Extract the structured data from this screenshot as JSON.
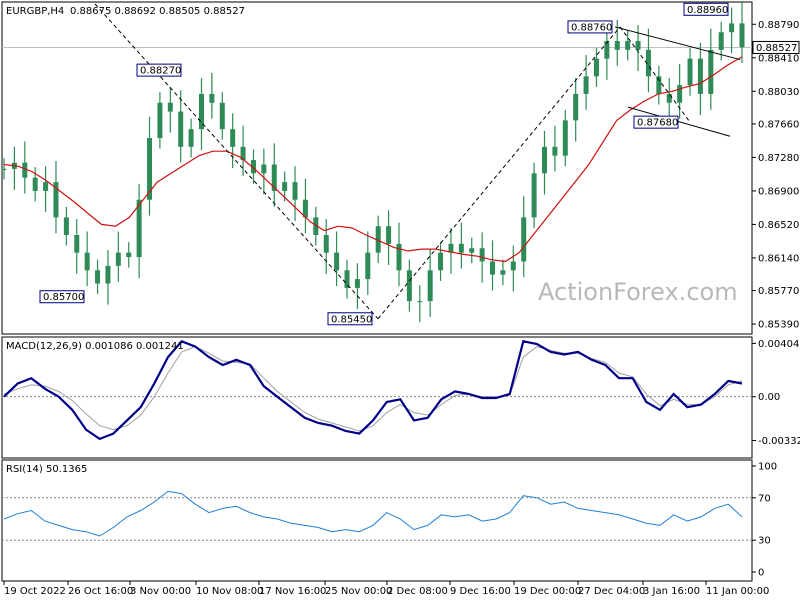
{
  "header": {
    "symbol": "EURGBP,H4",
    "ohlc": "0.88675 0.88692 0.88505 0.88527"
  },
  "watermark": "ActionForex.com",
  "colors": {
    "candle": "#2e8b57",
    "ma": "#d01010",
    "trendline": "#000000",
    "label_border": "#000080",
    "label_fill": "#ffffff",
    "macd_main": "#00008b",
    "macd_signal": "#a0a0a0",
    "rsi": "#1e7fd8",
    "grid": "#888888",
    "watermark": "#b8b8b8"
  },
  "chart_data": [
    {
      "type": "candlestick",
      "title": "EURGBP,H4",
      "ylim": [
        0.853,
        0.8902
      ],
      "yticks": [
        "0.88790",
        "0.88410",
        "0.88030",
        "0.87660",
        "0.87280",
        "0.86900",
        "0.86520",
        "0.86140",
        "0.85770",
        "0.85390"
      ],
      "current_price_label": "0.88527",
      "current_price": 0.88527,
      "xticks": [
        "19 Oct 2022",
        "26 Oct 16:00",
        "3 Nov 00:00",
        "10 Nov 08:00",
        "17 Nov 16:00",
        "25 Nov 00:00",
        "2 Dec 08:00",
        "9 Dec 16:00",
        "19 Dec 00:00",
        "27 Dec 04:00",
        "3 Jan 16:00",
        "11 Jan 00:00"
      ],
      "series": [
        {
          "kind": "close",
          "values": [
            0.8715,
            0.8722,
            0.8705,
            0.869,
            0.87,
            0.866,
            0.864,
            0.862,
            0.86,
            0.8585,
            0.8605,
            0.862,
            0.8615,
            0.868,
            0.875,
            0.879,
            0.878,
            0.874,
            0.876,
            0.88,
            0.879,
            0.876,
            0.874,
            0.8725,
            0.871,
            0.872,
            0.869,
            0.87,
            0.868,
            0.866,
            0.864,
            0.862,
            0.86,
            0.858,
            0.859,
            0.862,
            0.865,
            0.863,
            0.86,
            0.8565,
            0.8565,
            0.86,
            0.862,
            0.863,
            0.862,
            0.8625,
            0.861,
            0.8595,
            0.86,
            0.861,
            0.866,
            0.871,
            0.874,
            0.873,
            0.877,
            0.88,
            0.882,
            0.884,
            0.886,
            0.885,
            0.886,
            0.885,
            0.882,
            0.88,
            0.879,
            0.881,
            0.884,
            0.88,
            0.885,
            0.887,
            0.888,
            0.8853
          ]
        },
        {
          "kind": "moving_average",
          "values": [
            0.872,
            0.8718,
            0.8712,
            0.8702,
            0.869,
            0.8678,
            0.8665,
            0.8652,
            0.865,
            0.866,
            0.868,
            0.87,
            0.871,
            0.872,
            0.873,
            0.8735,
            0.8735,
            0.8728,
            0.8715,
            0.87,
            0.8685,
            0.867,
            0.8655,
            0.8645,
            0.865,
            0.8648,
            0.864,
            0.8633,
            0.8626,
            0.8622,
            0.8624,
            0.8624,
            0.8621,
            0.8618,
            0.8616,
            0.8612,
            0.861,
            0.862,
            0.864,
            0.866,
            0.868,
            0.87,
            0.872,
            0.8745,
            0.877,
            0.8782,
            0.8792,
            0.88,
            0.8803,
            0.8808,
            0.8812,
            0.8822,
            0.8833,
            0.8842
          ]
        }
      ],
      "annotations": [
        {
          "label": "0.88270",
          "value": 0.8827
        },
        {
          "label": "0.85700",
          "value": 0.857
        },
        {
          "label": "0.85450",
          "value": 0.8545
        },
        {
          "label": "0.88760",
          "value": 0.8876
        },
        {
          "label": "0.88960",
          "value": 0.8896
        },
        {
          "label": "0.87680",
          "value": 0.8768
        }
      ]
    },
    {
      "type": "line",
      "title": "MACD(12,26,9) 0.001086 0.001241",
      "ylim": [
        -0.0045,
        0.0043
      ],
      "yticks": [
        "0.004042",
        "0.00",
        "-0.003326"
      ],
      "series": [
        {
          "name": "MACD",
          "values": [
            0.0,
            0.001,
            0.0014,
            0.0006,
            0.0,
            -0.001,
            -0.0025,
            -0.0032,
            -0.0028,
            -0.0018,
            -0.0008,
            0.001,
            0.003,
            0.0042,
            0.0038,
            0.003,
            0.0024,
            0.0028,
            0.0024,
            0.0008,
            0.0,
            -0.0008,
            -0.0016,
            -0.002,
            -0.0022,
            -0.0026,
            -0.0028,
            -0.0018,
            -0.0004,
            -0.0002,
            -0.0018,
            -0.0016,
            -0.0002,
            0.0004,
            0.0002,
            -0.0001,
            -0.0001,
            0.0002,
            0.0042,
            0.004,
            0.0034,
            0.0032,
            0.0034,
            0.0028,
            0.0024,
            0.0014,
            0.0014,
            -0.0004,
            -0.001,
            0.0002,
            -0.0008,
            -0.0006,
            0.0002,
            0.0012,
            0.001
          ]
        },
        {
          "name": "Signal",
          "values": [
            0.0002,
            0.0006,
            0.0009,
            0.0008,
            0.0004,
            -0.0003,
            -0.0013,
            -0.0022,
            -0.0025,
            -0.0022,
            -0.0014,
            0.0,
            0.0018,
            0.0034,
            0.0038,
            0.0033,
            0.0027,
            0.0026,
            0.0025,
            0.0014,
            0.0004,
            -0.0004,
            -0.0012,
            -0.0017,
            -0.002,
            -0.0023,
            -0.0026,
            -0.0022,
            -0.0012,
            -0.0006,
            -0.0012,
            -0.0014,
            -0.0006,
            0.0001,
            0.0002,
            0.0,
            0.0,
            0.0001,
            0.003,
            0.0038,
            0.0035,
            0.0033,
            0.0033,
            0.0029,
            0.0026,
            0.0018,
            0.0015,
            0.0002,
            -0.0007,
            -0.0002,
            -0.0006,
            -0.0006,
            0.0,
            0.0009,
            0.0012
          ]
        }
      ]
    },
    {
      "type": "line",
      "title": "RSI(14) 50.1365",
      "ylim": [
        0,
        100
      ],
      "yticks": [
        "100",
        "70",
        "30",
        "0"
      ],
      "levels": [
        70,
        30
      ],
      "series": [
        {
          "name": "RSI",
          "values": [
            50,
            55,
            58,
            48,
            44,
            40,
            38,
            34,
            42,
            52,
            58,
            66,
            76,
            74,
            64,
            56,
            60,
            62,
            56,
            52,
            50,
            46,
            44,
            42,
            38,
            40,
            38,
            44,
            56,
            50,
            40,
            44,
            54,
            52,
            54,
            48,
            50,
            56,
            72,
            70,
            64,
            66,
            60,
            58,
            56,
            54,
            50,
            46,
            44,
            54,
            48,
            52,
            60,
            64,
            52
          ]
        }
      ]
    }
  ]
}
